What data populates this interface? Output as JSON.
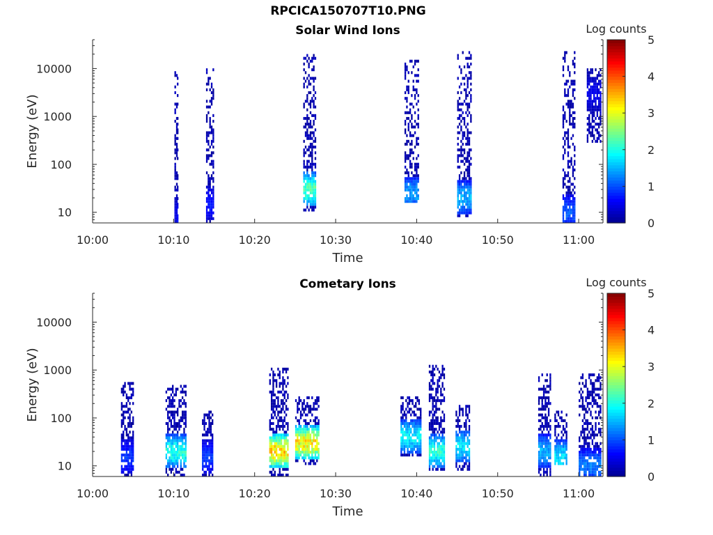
{
  "figure": {
    "title": "RPCICA150707T10.PNG"
  },
  "colormap": {
    "name": "jet",
    "stops": [
      "#00008f",
      "#0000ff",
      "#0080ff",
      "#00ffff",
      "#80ff80",
      "#ffff00",
      "#ff8000",
      "#ff0000",
      "#800000"
    ]
  },
  "chart_data": [
    {
      "type": "heatmap",
      "title": "Solar Wind Ions",
      "xlabel": "Time",
      "ylabel": "Energy (eV)",
      "x_ticks": [
        "10:00",
        "10:10",
        "10:20",
        "10:30",
        "10:40",
        "10:50",
        "11:00"
      ],
      "y_ticks": [
        "10",
        "100",
        "1000",
        "10000"
      ],
      "y_scale": "log",
      "xlim": [
        "10:00",
        "11:03"
      ],
      "ylim": [
        6,
        40000
      ],
      "colorbar": {
        "label": "Log counts",
        "ticks": [
          "0",
          "1",
          "2",
          "3",
          "4",
          "5"
        ],
        "range": [
          0,
          5
        ]
      },
      "bursts": [
        {
          "t_start": 10.1,
          "t_end": 10.3,
          "e_low": 6,
          "e_high": 9000,
          "peak_log_counts": 0.5,
          "peak_energy": 10
        },
        {
          "t_start": 10.4,
          "t_end": 10.6,
          "e_low": 6,
          "e_high": 9000,
          "peak_log_counts": 0.8,
          "peak_energy": 8
        },
        {
          "t_start": 14.0,
          "t_end": 14.8,
          "e_low": 6,
          "e_high": 10000,
          "peak_log_counts": 0.8,
          "peak_energy": 15
        },
        {
          "t_start": 26.0,
          "t_end": 27.5,
          "e_low": 10,
          "e_high": 20000,
          "peak_log_counts": 2.6,
          "peak_energy": 30
        },
        {
          "t_start": 38.5,
          "t_end": 40.2,
          "e_low": 15,
          "e_high": 15000,
          "peak_log_counts": 1.6,
          "peak_energy": 25
        },
        {
          "t_start": 45.0,
          "t_end": 46.7,
          "e_low": 8,
          "e_high": 22000,
          "peak_log_counts": 1.7,
          "peak_energy": 20
        },
        {
          "t_start": 58.0,
          "t_end": 59.5,
          "e_low": 6,
          "e_high": 22000,
          "peak_log_counts": 1.2,
          "peak_energy": 10
        },
        {
          "t_start": 61.0,
          "t_end": 62.8,
          "e_low": 300,
          "e_high": 10000,
          "peak_log_counts": 0.6,
          "peak_energy": 3000
        }
      ]
    },
    {
      "type": "heatmap",
      "title": "Cometary Ions",
      "xlabel": "Time",
      "ylabel": "Energy (eV)",
      "x_ticks": [
        "10:00",
        "10:10",
        "10:20",
        "10:30",
        "10:40",
        "10:50",
        "11:00"
      ],
      "y_ticks": [
        "10",
        "100",
        "1000",
        "10000"
      ],
      "y_scale": "log",
      "xlim": [
        "10:00",
        "11:03"
      ],
      "ylim": [
        6,
        40000
      ],
      "colorbar": {
        "label": "Log counts",
        "ticks": [
          "0",
          "1",
          "2",
          "3",
          "4",
          "5"
        ],
        "range": [
          0,
          5
        ]
      },
      "bursts": [
        {
          "t_start": 3.5,
          "t_end": 5.0,
          "e_low": 6,
          "e_high": 600,
          "peak_log_counts": 1.0,
          "peak_energy": 15
        },
        {
          "t_start": 9.0,
          "t_end": 11.5,
          "e_low": 6,
          "e_high": 500,
          "peak_log_counts": 2.3,
          "peak_energy": 20
        },
        {
          "t_start": 13.5,
          "t_end": 14.8,
          "e_low": 6,
          "e_high": 150,
          "peak_log_counts": 1.0,
          "peak_energy": 15
        },
        {
          "t_start": 21.8,
          "t_end": 24.0,
          "e_low": 6,
          "e_high": 1100,
          "peak_log_counts": 3.8,
          "peak_energy": 20
        },
        {
          "t_start": 25.0,
          "t_end": 27.8,
          "e_low": 10,
          "e_high": 300,
          "peak_log_counts": 3.6,
          "peak_energy": 30
        },
        {
          "t_start": 38.0,
          "t_end": 40.5,
          "e_low": 15,
          "e_high": 300,
          "peak_log_counts": 2.1,
          "peak_energy": 40
        },
        {
          "t_start": 41.5,
          "t_end": 43.5,
          "e_low": 8,
          "e_high": 1300,
          "peak_log_counts": 2.3,
          "peak_energy": 20
        },
        {
          "t_start": 44.8,
          "t_end": 46.5,
          "e_low": 8,
          "e_high": 200,
          "peak_log_counts": 2.0,
          "peak_energy": 25
        },
        {
          "t_start": 55.0,
          "t_end": 56.5,
          "e_low": 6,
          "e_high": 800,
          "peak_log_counts": 1.7,
          "peak_energy": 20
        },
        {
          "t_start": 57.0,
          "t_end": 58.5,
          "e_low": 10,
          "e_high": 150,
          "peak_log_counts": 2.0,
          "peak_energy": 15
        },
        {
          "t_start": 60.0,
          "t_end": 62.8,
          "e_low": 6,
          "e_high": 900,
          "peak_log_counts": 1.4,
          "peak_energy": 10
        }
      ]
    }
  ]
}
